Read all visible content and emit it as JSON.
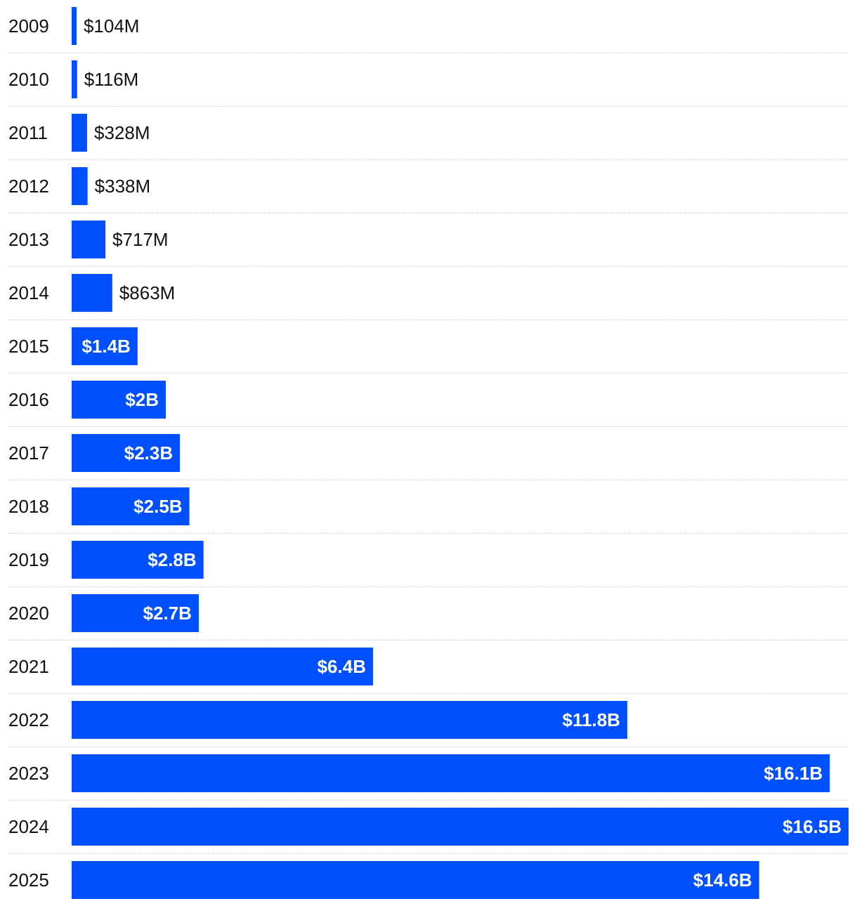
{
  "chart_data": {
    "type": "bar",
    "orientation": "horizontal",
    "title": "",
    "xlabel": "",
    "ylabel": "",
    "unit": "USD billions",
    "grid": false,
    "xlim": [
      0,
      16.5
    ],
    "bar_color": "#0050ff",
    "categories": [
      "2009",
      "2010",
      "2011",
      "2012",
      "2013",
      "2014",
      "2015",
      "2016",
      "2017",
      "2018",
      "2019",
      "2020",
      "2021",
      "2022",
      "2023",
      "2024",
      "2025"
    ],
    "values": [
      0.104,
      0.116,
      0.328,
      0.338,
      0.717,
      0.863,
      1.4,
      2.0,
      2.3,
      2.5,
      2.8,
      2.7,
      6.4,
      11.8,
      16.1,
      16.5,
      14.6
    ],
    "data_labels": [
      "$104M",
      "$116M",
      "$328M",
      "$338M",
      "$717M",
      "$863M",
      "$1.4B",
      "$2B",
      "$2.3B",
      "$2.5B",
      "$2.8B",
      "$2.7B",
      "$6.4B",
      "$11.8B",
      "$16.1B",
      "$16.5B",
      "$14.6B"
    ]
  }
}
